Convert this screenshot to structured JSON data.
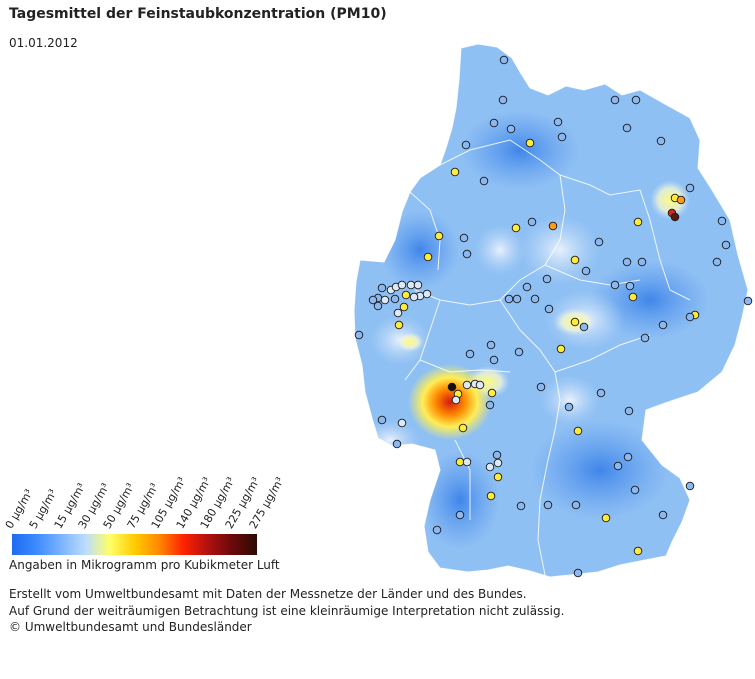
{
  "header": {
    "title": "Tagesmittel der Feinstaubkonzentration (PM10)",
    "date": "01.01.2012"
  },
  "legend": {
    "ticks": [
      "0 µg/m³",
      "5 µg/m³",
      "15 µg/m³",
      "30 µg/m³",
      "50 µg/m³",
      "75 µg/m³",
      "105 µg/m³",
      "140 µg/m³",
      "180 µg/m³",
      "225 µg/m³",
      "275 µg/m³"
    ],
    "colors": [
      "#1e6cf0",
      "#3d8bff",
      "#7ab3ff",
      "#bcdcff",
      "#ffff66",
      "#ffcc00",
      "#ff8800",
      "#ff2200",
      "#b01010",
      "#6a0a0a",
      "#2a0a05"
    ],
    "unit_note": "Angaben in Mikrogramm pro Kubikmeter Luft"
  },
  "footer": {
    "line1": "Erstellt vom Umweltbundesamt mit Daten der Messnetze der Länder und des Bundes.",
    "line2": "Auf Grund der weiträumigen Betrachtung ist eine kleinräumige Interpretation nicht zulässig.",
    "line3": "© Umweltbundesamt und Bundesländer"
  },
  "map": {
    "base_color": "#8fc0f4",
    "station_colors": {
      "blue": "#8bb8f0",
      "light": "#dce9f8",
      "yellow": "#ffeb3b",
      "orange": "#ff9a1a",
      "red": "#d42a1a",
      "dark": "#5a1a10",
      "black": "#111111"
    }
  }
}
